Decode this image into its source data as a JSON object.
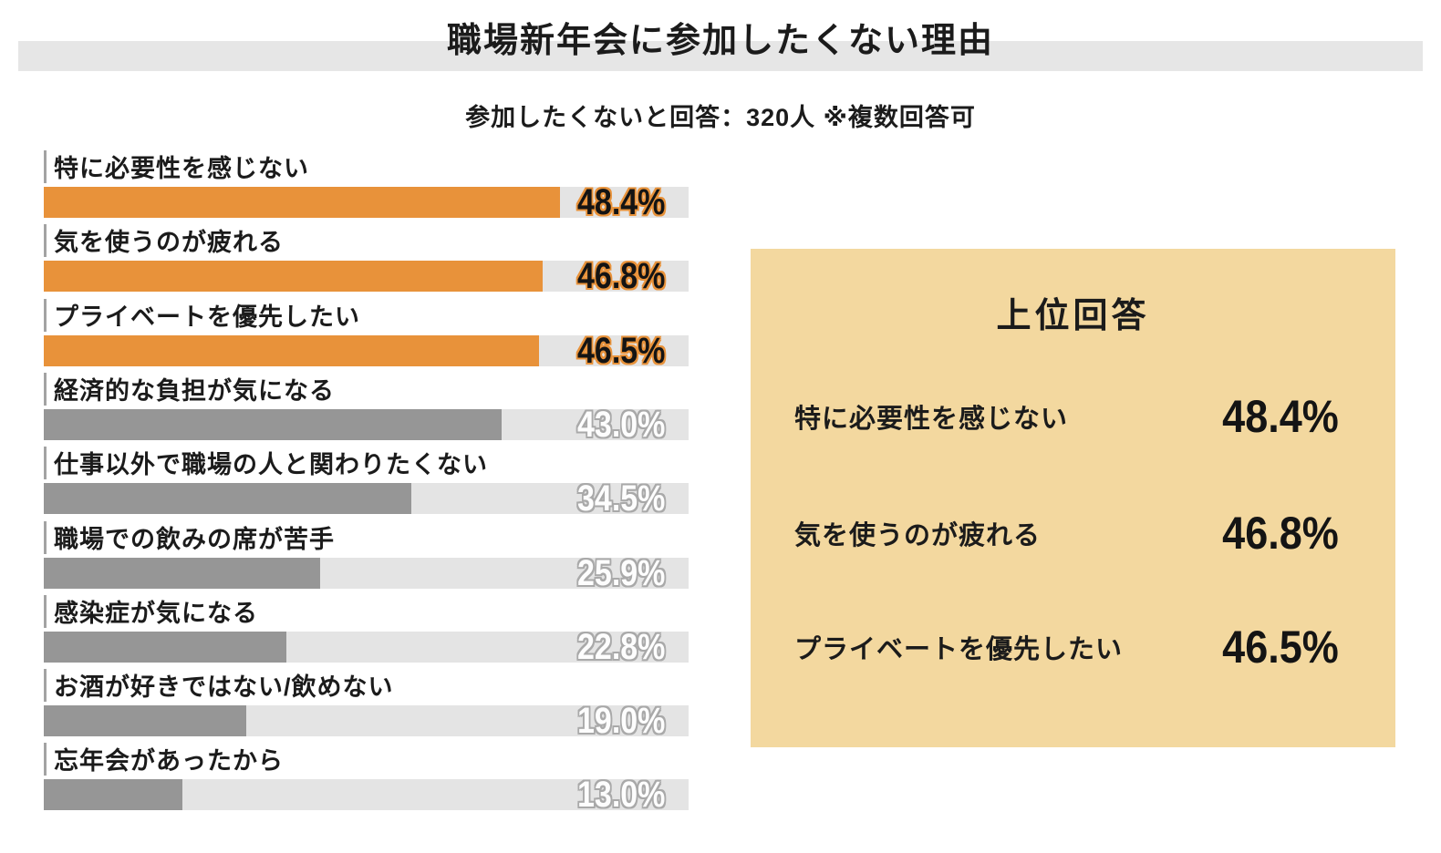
{
  "title": "職場新年会に参加したくない理由",
  "subtitle": "参加したくないと回答：320人 ※複数回答可",
  "colors": {
    "highlight_bar": "#e8923a",
    "normal_bar": "#969696",
    "bar_track": "#e4e4e4",
    "title_band": "#e6e6e6",
    "summary_panel_bg": "#f3d89f",
    "text": "#1b1b1b"
  },
  "chart_data": {
    "type": "bar",
    "orientation": "horizontal",
    "title": "職場新年会に参加したくない理由",
    "subtitle": "参加したくないと回答：320人 ※複数回答可",
    "categories": [
      "特に必要性を感じない",
      "気を使うのが疲れる",
      "プライベートを優先したい",
      "経済的な負担が気になる",
      "仕事以外で職場の人と関わりたくない",
      "職場での飲みの席が苦手",
      "感染症が気になる",
      "お酒が好きではない/飲めない",
      "忘年会があったから"
    ],
    "values": [
      48.4,
      46.8,
      46.5,
      43.0,
      34.5,
      25.9,
      22.8,
      19.0,
      13.0
    ],
    "value_labels": [
      "48.4%",
      "46.8%",
      "46.5%",
      "43.0%",
      "34.5%",
      "25.9%",
      "22.8%",
      "19.0%",
      "13.0%"
    ],
    "highlighted_indices": [
      0,
      1,
      2
    ],
    "xlabel": "",
    "ylabel": "",
    "axis_max": 60.5,
    "grid": false,
    "legend": "none"
  },
  "summary_panel": {
    "title": "上位回答",
    "items": [
      {
        "label": "特に必要性を感じない",
        "value": "48.4%"
      },
      {
        "label": "気を使うのが疲れる",
        "value": "46.8%"
      },
      {
        "label": "プライベートを優先したい",
        "value": "46.5%"
      }
    ]
  }
}
